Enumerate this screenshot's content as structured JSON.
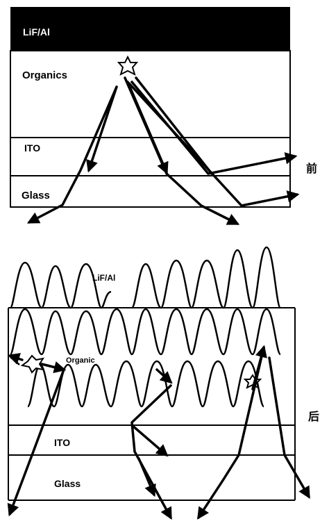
{
  "top_diagram": {
    "layers": {
      "cathode": "LiF/Al",
      "organics": "Organics",
      "ito": "ITO",
      "glass": "Glass"
    },
    "label": "前"
  },
  "bottom_diagram": {
    "layers": {
      "cathode": "LiF/Al",
      "organics": "Organic",
      "ito": "ITO",
      "glass": "Glass"
    },
    "label": "后"
  },
  "colors": {
    "ink": "#000000",
    "background": "#ffffff",
    "cathode_fill": "#000000",
    "cathode_text": "#ffffff"
  },
  "icons": [
    "emitter-star-icon",
    "arrow-icon"
  ]
}
